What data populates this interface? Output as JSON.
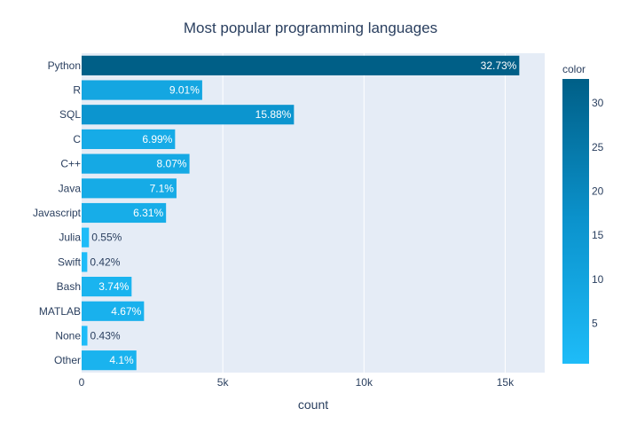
{
  "chart_data": {
    "type": "bar",
    "orientation": "horizontal",
    "title": "Most popular programming languages",
    "xlabel": "count",
    "ylabel": "",
    "xlim": [
      0,
      16400
    ],
    "x_ticks": [
      0,
      5000,
      10000,
      15000
    ],
    "x_tick_labels": [
      "0",
      "5k",
      "10k",
      "15k"
    ],
    "grid": true,
    "categories": [
      "Python",
      "R",
      "SQL",
      "C",
      "C++",
      "Java",
      "Javascript",
      "Julia",
      "Swift",
      "Bash",
      "MATLAB",
      "None",
      "Other"
    ],
    "values": [
      15500,
      4270,
      7520,
      3310,
      3820,
      3360,
      2990,
      260,
      200,
      1770,
      2210,
      205,
      1940
    ],
    "text_labels": [
      "32.73%",
      "9.01%",
      "15.88%",
      "6.99%",
      "8.07%",
      "7.1%",
      "6.31%",
      "0.55%",
      "0.42%",
      "3.74%",
      "4.67%",
      "0.43%",
      "4.1%"
    ],
    "color_values": [
      32.73,
      9.01,
      15.88,
      6.99,
      8.07,
      7.1,
      6.31,
      0.55,
      0.42,
      3.74,
      4.67,
      0.43,
      4.1
    ],
    "colorbar": {
      "title": "color",
      "range": [
        0.42,
        32.73
      ],
      "ticks": [
        5,
        10,
        15,
        20,
        25,
        30
      ],
      "colors": [
        "#1ebcf8",
        "#005f87"
      ]
    }
  }
}
